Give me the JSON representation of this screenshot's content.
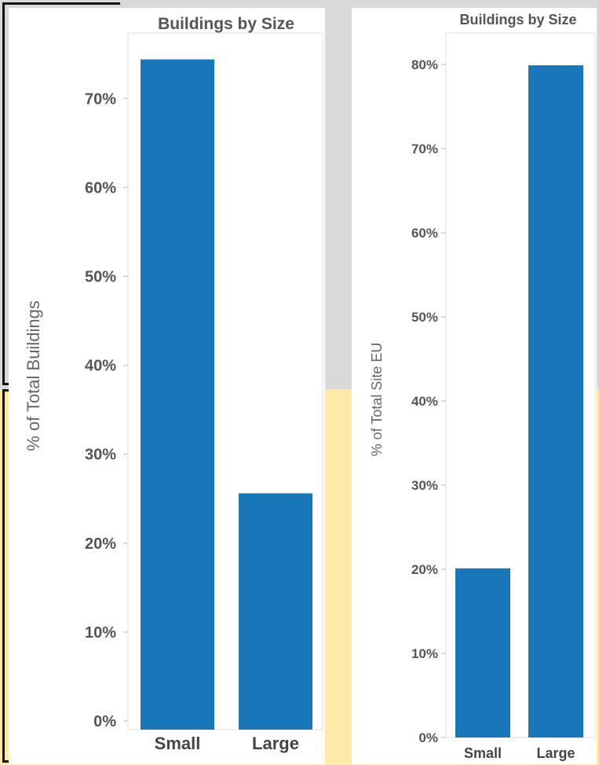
{
  "chart_data": [
    {
      "type": "bar",
      "title": "Buildings by Size",
      "ylabel": "% of Total Buildings",
      "xlabel": "",
      "categories": [
        "Small",
        "Large"
      ],
      "values": [
        74.4,
        25.6
      ],
      "ylim": [
        0,
        80
      ],
      "yticks": [
        "0%",
        "10%",
        "20%",
        "30%",
        "40%",
        "50%",
        "60%",
        "70%"
      ],
      "bar_color": "#1877b8",
      "grid": false
    },
    {
      "type": "bar",
      "title": "Buildings by Size",
      "ylabel": "% of Total Site EU",
      "xlabel": "",
      "categories": [
        "Small",
        "Large"
      ],
      "values": [
        20.1,
        79.9
      ],
      "ylim": [
        0,
        85
      ],
      "yticks": [
        "0%",
        "10%",
        "20%",
        "30%",
        "40%",
        "50%",
        "60%",
        "70%",
        "80%"
      ],
      "bar_color": "#1877b8",
      "grid": false
    }
  ]
}
